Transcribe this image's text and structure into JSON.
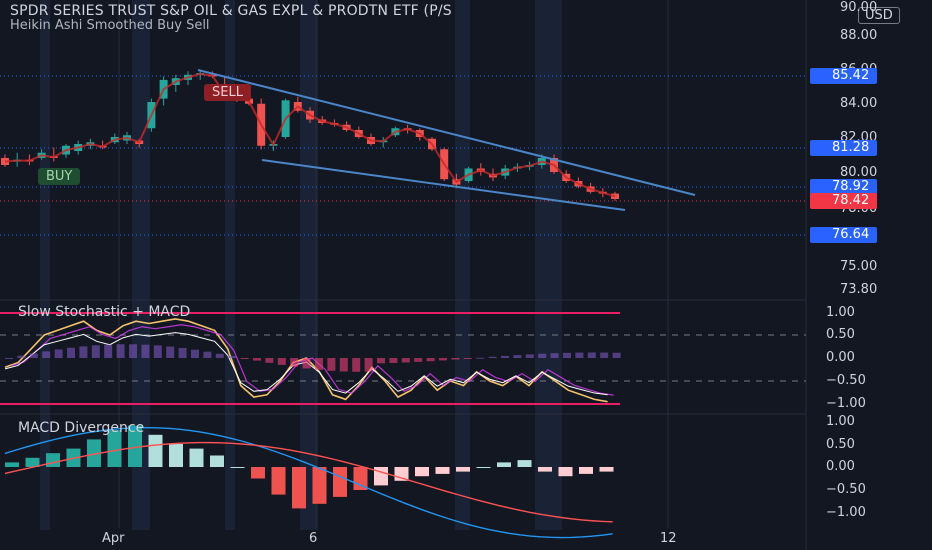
{
  "header": {
    "title": "SPDR SERIES TRUST S&P OIL & GAS EXPL & PRODTN ETF (P/S",
    "indicator": "Heikin Ashi Smoothed Buy Sell",
    "currency": "USD"
  },
  "price_axis": [
    "90.00",
    "88.00",
    "86.00",
    "84.00",
    "82.00",
    "80.00",
    "78.00",
    "75.00",
    "73.80"
  ],
  "price_tags": [
    {
      "label": "85.42",
      "color": "#2962ff"
    },
    {
      "label": "81.28",
      "color": "#2962ff"
    },
    {
      "label": "78.92",
      "color": "#2962ff"
    },
    {
      "label": "78.42",
      "color": "#f23645"
    },
    {
      "label": "76.64",
      "color": "#2962ff"
    }
  ],
  "signals": {
    "buy": "BUY",
    "sell": "SELL"
  },
  "panes": {
    "stoch": {
      "label": "Slow Stochastic + MACD",
      "axis": [
        "1.00",
        "0.50",
        "0.00",
        "−0.50",
        "−1.00"
      ]
    },
    "macd": {
      "label": "MACD Divergence",
      "axis": [
        "1.00",
        "0.50",
        "0.00",
        "−0.50",
        "−1.00"
      ]
    }
  },
  "time_axis": [
    "Apr",
    "6",
    "12"
  ],
  "chart_data": {
    "type": "candlestick",
    "title": "SPDR SERIES TRUST S&P OIL & GAS EXPL & PRODTN ETF (P/S",
    "ylim": [
      73.8,
      90.0
    ],
    "candles_ohlc": [
      [
        80.8,
        81.0,
        80.3,
        80.4
      ],
      [
        80.6,
        81.1,
        80.3,
        80.7
      ],
      [
        80.7,
        81.0,
        80.4,
        80.6
      ],
      [
        80.8,
        81.3,
        80.7,
        81.1
      ],
      [
        80.9,
        81.4,
        80.6,
        80.8
      ],
      [
        81.0,
        81.6,
        80.8,
        81.5
      ],
      [
        81.2,
        81.8,
        81.0,
        81.6
      ],
      [
        81.5,
        81.9,
        81.3,
        81.7
      ],
      [
        81.5,
        81.8,
        81.3,
        81.4
      ],
      [
        81.7,
        82.2,
        81.6,
        82.0
      ],
      [
        81.8,
        82.3,
        81.6,
        82.1
      ],
      [
        81.8,
        81.9,
        81.4,
        81.6
      ],
      [
        82.5,
        84.2,
        82.3,
        84.0
      ],
      [
        84.2,
        85.5,
        83.8,
        85.3
      ],
      [
        85.0,
        85.6,
        84.6,
        85.4
      ],
      [
        85.3,
        85.8,
        85.0,
        85.6
      ],
      [
        85.6,
        85.9,
        85.3,
        85.7
      ],
      [
        85.6,
        85.8,
        85.4,
        85.5
      ],
      [
        84.6,
        85.5,
        84.3,
        84.4
      ],
      [
        84.4,
        84.7,
        84.0,
        84.1
      ],
      [
        84.2,
        84.5,
        83.8,
        83.9
      ],
      [
        83.9,
        84.2,
        81.3,
        81.5
      ],
      [
        81.5,
        81.8,
        81.2,
        81.6
      ],
      [
        82.0,
        84.2,
        81.9,
        84.1
      ],
      [
        84.0,
        84.3,
        83.4,
        83.5
      ],
      [
        83.5,
        83.7,
        82.8,
        83.0
      ],
      [
        83.0,
        83.2,
        82.7,
        82.8
      ],
      [
        82.8,
        83.0,
        82.6,
        82.7
      ],
      [
        82.7,
        82.9,
        82.3,
        82.4
      ],
      [
        82.4,
        82.6,
        81.9,
        82.0
      ],
      [
        82.0,
        82.2,
        81.5,
        81.6
      ],
      [
        81.7,
        82.0,
        81.4,
        81.8
      ],
      [
        82.1,
        82.6,
        82.0,
        82.5
      ],
      [
        82.5,
        82.7,
        82.2,
        82.4
      ],
      [
        82.4,
        82.5,
        81.8,
        82.0
      ],
      [
        81.9,
        82.0,
        81.2,
        81.3
      ],
      [
        81.3,
        81.4,
        79.5,
        79.6
      ],
      [
        79.6,
        79.9,
        79.1,
        79.3
      ],
      [
        79.5,
        80.3,
        79.4,
        80.2
      ],
      [
        80.2,
        80.5,
        79.8,
        80.0
      ],
      [
        79.9,
        80.2,
        79.5,
        79.7
      ],
      [
        79.8,
        80.4,
        79.6,
        80.2
      ],
      [
        80.2,
        80.5,
        80.0,
        80.3
      ],
      [
        80.3,
        80.6,
        80.1,
        80.4
      ],
      [
        80.4,
        81.0,
        80.2,
        80.8
      ],
      [
        80.8,
        81.0,
        79.9,
        80.0
      ],
      [
        79.9,
        80.1,
        79.4,
        79.5
      ],
      [
        79.5,
        79.7,
        79.1,
        79.2
      ],
      [
        79.2,
        79.4,
        78.8,
        78.9
      ],
      [
        78.9,
        79.1,
        78.6,
        78.8
      ],
      [
        78.8,
        78.9,
        78.4,
        78.5
      ]
    ],
    "channel": {
      "upper": [
        [
          0,
          85.9
        ],
        [
          62,
          79.1
        ]
      ],
      "lower": [
        [
          0,
          81.3
        ],
        [
          62,
          78.0
        ]
      ]
    },
    "oscillators": {
      "stoch_k": [
        -0.2,
        -0.1,
        0.2,
        0.5,
        0.6,
        0.7,
        0.8,
        0.6,
        0.5,
        0.7,
        0.8,
        0.75,
        0.8,
        0.85,
        0.8,
        0.7,
        0.6,
        0.2,
        -0.6,
        -0.85,
        -0.8,
        -0.5,
        -0.1,
        0.0,
        -0.3,
        -0.8,
        -0.9,
        -0.6,
        -0.2,
        -0.5,
        -0.85,
        -0.7,
        -0.4,
        -0.7,
        -0.5,
        -0.6,
        -0.3,
        -0.5,
        -0.6,
        -0.4,
        -0.6,
        -0.3,
        -0.5,
        -0.7,
        -0.8,
        -0.9,
        -0.95
      ],
      "macd_hist": [
        0.02,
        0.04,
        0.06,
        0.08,
        0.12,
        0.16,
        0.18,
        0.14,
        0.1,
        0.08,
        0.05,
        0.0,
        -0.05,
        -0.12,
        -0.18,
        -0.16,
        -0.13,
        -0.1,
        -0.08,
        -0.06,
        -0.04,
        -0.03,
        -0.02,
        0.0,
        0.02,
        0.03,
        -0.02,
        -0.04,
        -0.03,
        -0.02
      ]
    }
  }
}
